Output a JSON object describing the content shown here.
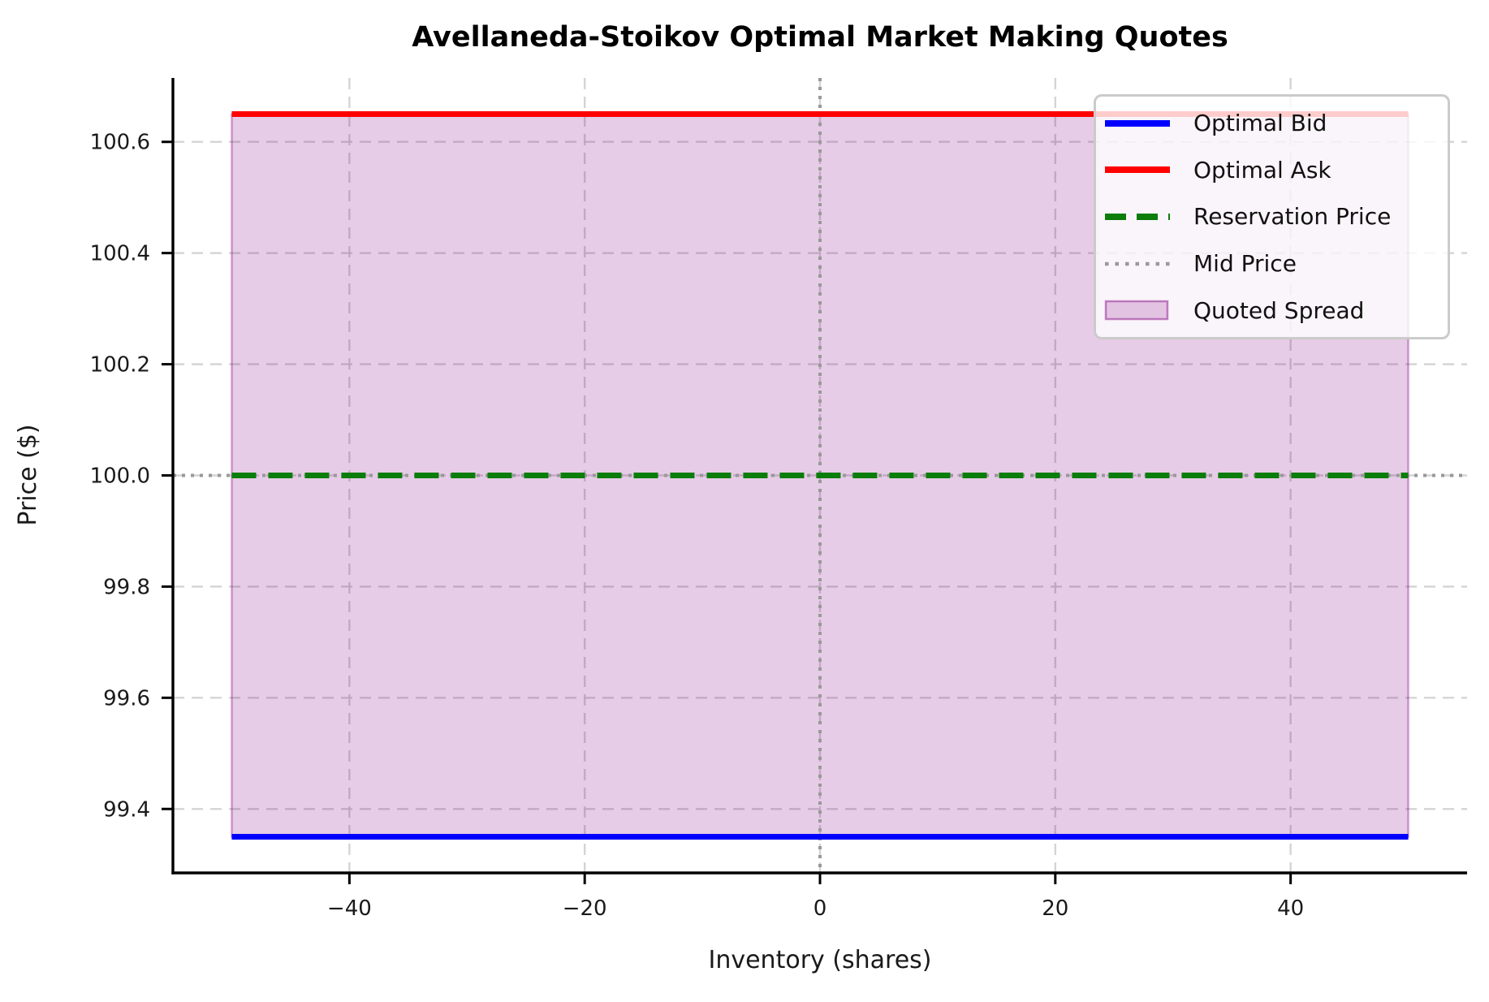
{
  "chart_data": {
    "type": "line",
    "title": "Avellaneda-Stoikov Optimal Market Making Quotes",
    "xlabel": "Inventory (shares)",
    "ylabel": "Price ($)",
    "xlim": [
      -55,
      55
    ],
    "ylim": [
      99.285,
      100.715
    ],
    "x_ticks": [
      -40,
      -20,
      0,
      20,
      40
    ],
    "x_tick_labels": [
      "−40",
      "−20",
      "0",
      "20",
      "40"
    ],
    "y_ticks": [
      99.4,
      99.6,
      99.8,
      100.0,
      100.2,
      100.4,
      100.6
    ],
    "y_tick_labels": [
      "99.4",
      "99.6",
      "99.8",
      "100.0",
      "100.2",
      "100.4",
      "100.6"
    ],
    "grid": {
      "on": true,
      "linestyle": "dashed",
      "color": "#cccccc"
    },
    "series": [
      {
        "name": "Optimal Bid",
        "color": "#0000ff",
        "linestyle": "solid",
        "linewidth": 7,
        "x": [
          -50,
          50
        ],
        "y": [
          99.35,
          99.35
        ]
      },
      {
        "name": "Optimal Ask",
        "color": "#ff0000",
        "linestyle": "solid",
        "linewidth": 7,
        "x": [
          -50,
          50
        ],
        "y": [
          100.65,
          100.65
        ]
      },
      {
        "name": "Reservation Price",
        "color": "#0a7d0a",
        "linestyle": "dashed",
        "linewidth": 7,
        "x": [
          -50,
          50
        ],
        "y": [
          100.0,
          100.0
        ]
      },
      {
        "name": "Mid Price",
        "color": "#999999",
        "linestyle": "dotted",
        "linewidth": 4,
        "x": [
          -55,
          55
        ],
        "y": [
          100.0,
          100.0
        ],
        "spans_full_axes": true
      }
    ],
    "fill_between": {
      "name": "Quoted Spread",
      "color": "#800080",
      "alpha": 0.2,
      "x": [
        -50,
        50
      ],
      "y_top": [
        100.65,
        100.65
      ],
      "y_bottom": [
        99.35,
        99.35
      ]
    },
    "vline": {
      "x": 0,
      "color": "#999999",
      "linestyle": "dotted",
      "linewidth": 4
    },
    "legend": {
      "position": "upper right",
      "items": [
        {
          "label": "Optimal Bid",
          "kind": "line",
          "color": "#0000ff"
        },
        {
          "label": "Optimal Ask",
          "kind": "line",
          "color": "#ff0000"
        },
        {
          "label": "Reservation Price",
          "kind": "dashed-line",
          "color": "#0a7d0a"
        },
        {
          "label": "Mid Price",
          "kind": "dotted-line",
          "color": "#999999"
        },
        {
          "label": "Quoted Spread",
          "kind": "patch",
          "color": "#800080"
        }
      ]
    },
    "derived_values": {
      "mid_price": 100.0,
      "reservation_price": 100.0,
      "optimal_bid": 99.35,
      "optimal_ask": 100.65,
      "quoted_spread": 1.3
    }
  }
}
